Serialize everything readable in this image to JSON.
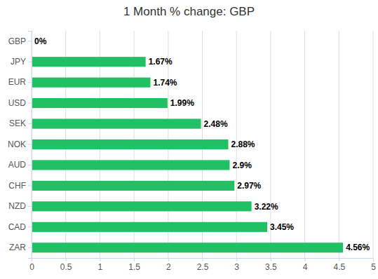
{
  "chart_data": {
    "type": "bar",
    "title": "1 Month % change: GBP",
    "orientation": "horizontal",
    "categories": [
      "GBP",
      "JPY",
      "EUR",
      "USD",
      "SEK",
      "NOK",
      "AUD",
      "CHF",
      "NZD",
      "CAD",
      "ZAR"
    ],
    "values": [
      0,
      1.67,
      1.74,
      1.99,
      2.48,
      2.88,
      2.9,
      2.97,
      3.22,
      3.45,
      4.56
    ],
    "value_labels": [
      "0%",
      "1.67%",
      "1.74%",
      "1.99%",
      "2.48%",
      "2.88%",
      "2.9%",
      "2.97%",
      "3.22%",
      "3.45%",
      "4.56%"
    ],
    "data_labels": true,
    "color": "#22c064",
    "xlim": [
      0,
      5
    ],
    "xticks": [
      0,
      0.5,
      1,
      1.5,
      2,
      2.5,
      3,
      3.5,
      4,
      4.5,
      5
    ],
    "grid": true
  }
}
